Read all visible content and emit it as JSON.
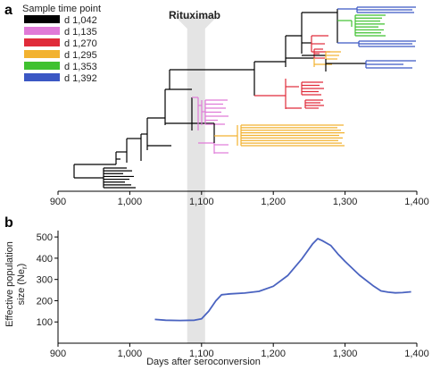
{
  "panel_a_label": "a",
  "panel_b_label": "b",
  "annotation": "Rituximab",
  "legend_title": "Sample time point",
  "colors": {
    "d 1,042": "#000000",
    "d 1,135": "#e07ad8",
    "d 1,270": "#e02b3a",
    "d 1,295": "#f2b230",
    "d 1,353": "#3fc12f",
    "d 1,392": "#3b57c4",
    "band": "#e4e4e4",
    "line_b": "#4a63c0"
  },
  "chart_data": [
    {
      "type": "tree",
      "legend": [
        "d 1,042",
        "d 1,135",
        "d 1,270",
        "d 1,295",
        "d 1,353",
        "d 1,392"
      ],
      "xlim": [
        900,
        1400
      ],
      "xticks": [
        "900",
        "1,000",
        "1,100",
        "1,200",
        "1,300",
        "1,400"
      ],
      "shaded_band_x": [
        1080,
        1105
      ]
    },
    {
      "type": "line",
      "xlabel": "Days after seroconversion",
      "ylabel_line1": "Effective population",
      "ylabel_line2": "size (Ne",
      "ylabel_sub": "r",
      "ylabel_close": ")",
      "xlim": [
        900,
        1400
      ],
      "ylim": [
        0,
        530
      ],
      "xticks": [
        "900",
        "1,000",
        "1,100",
        "1,200",
        "1,300",
        "1,400"
      ],
      "yticks": [
        "100",
        "200",
        "300",
        "400",
        "500"
      ],
      "series": [
        {
          "x": [
            1035,
            1050,
            1070,
            1090,
            1100,
            1110,
            1120,
            1128,
            1140,
            1160,
            1180,
            1200,
            1220,
            1240,
            1255,
            1262,
            1268,
            1280,
            1290,
            1300,
            1320,
            1340,
            1350,
            1360,
            1370,
            1380,
            1392
          ],
          "y": [
            112,
            108,
            107,
            108,
            115,
            150,
            200,
            228,
            232,
            236,
            244,
            268,
            318,
            398,
            468,
            492,
            483,
            460,
            420,
            385,
            320,
            268,
            246,
            240,
            237,
            238,
            242
          ]
        }
      ]
    }
  ]
}
